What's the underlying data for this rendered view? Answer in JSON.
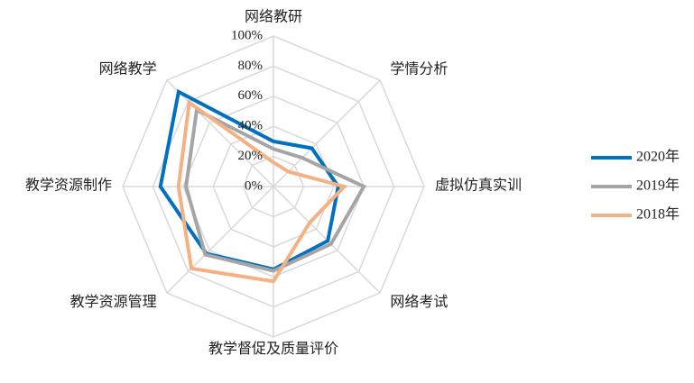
{
  "chart_data": {
    "type": "radar",
    "categories": [
      "网络教研",
      "学情分析",
      "虚拟仿真实训",
      "网络考试",
      "教学督促及质量评价",
      "教学资源管理",
      "教学资源制作",
      "网络教学"
    ],
    "series": [
      {
        "name": "2020年",
        "color": "#0070c0",
        "values": [
          30,
          36,
          43,
          51,
          55,
          63,
          75,
          89
        ]
      },
      {
        "name": "2019年",
        "color": "#a5a5a5",
        "values": [
          25,
          27,
          60,
          54,
          56,
          64,
          58,
          72
        ]
      },
      {
        "name": "2018年",
        "color": "#f4b183",
        "values": [
          16,
          14,
          47,
          34,
          63,
          77,
          63,
          79
        ]
      }
    ],
    "ylim": [
      0,
      100
    ],
    "yticks": [
      {
        "value": 0,
        "label": "0%"
      },
      {
        "value": 20,
        "label": "20%"
      },
      {
        "value": 40,
        "label": "40%"
      },
      {
        "value": 60,
        "label": "60%"
      },
      {
        "value": 80,
        "label": "80%"
      },
      {
        "value": 100,
        "label": "100%"
      }
    ],
    "grid": true,
    "legend": "right"
  }
}
